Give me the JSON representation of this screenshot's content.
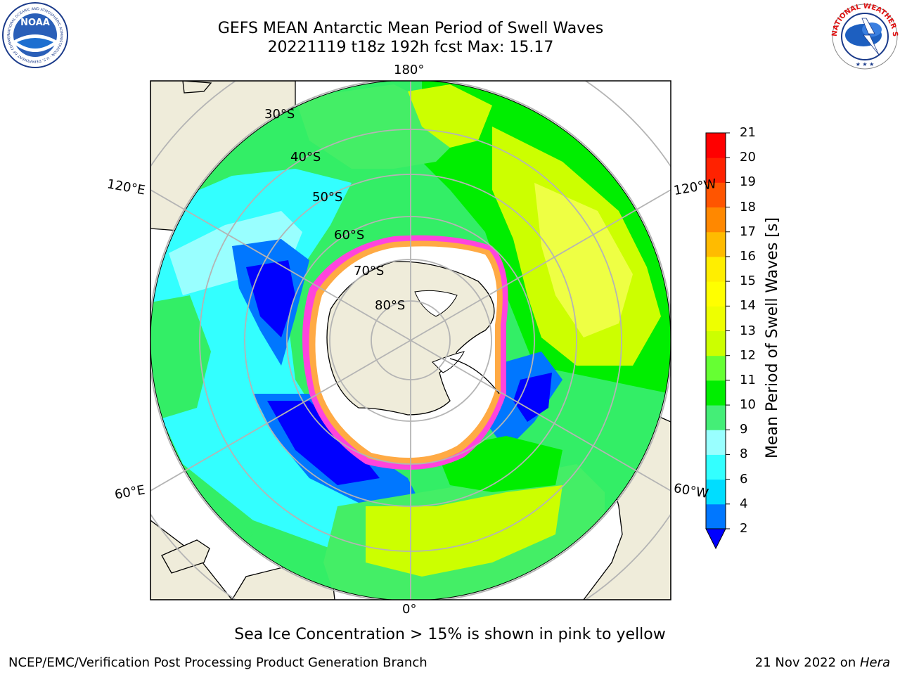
{
  "title": {
    "line1": "GEFS MEAN Antarctic Mean Period of Swell Waves",
    "line2": "20221119 t18z 192h fcst   Max: 15.17"
  },
  "map": {
    "projection": "south-polar-stereographic",
    "lat_labels": [
      "30°S",
      "40°S",
      "50°S",
      "60°S",
      "70°S",
      "80°S"
    ],
    "lon_labels": {
      "top": "180°",
      "bottom": "0°",
      "left_upper": "120°E",
      "left_lower": "60°E",
      "right_upper": "120°W",
      "right_lower": "60°W"
    },
    "colors": {
      "land": "#efecda",
      "ocean_deep_blue": "#0000ff",
      "blue": "#0077ff",
      "cyan": "#00ffff",
      "light_cyan": "#88ffff",
      "green": "#33ee55",
      "bright_green": "#00ee00",
      "yellow_green": "#ccff00",
      "sea_ice_pink": "#ff44dd",
      "sea_ice_orange": "#ffaa44",
      "grid": "#b4b4b4"
    }
  },
  "colorbar": {
    "label": "Mean Period of Swell Waves [s]",
    "ticks": [
      "2",
      "4",
      "6",
      "8",
      "9",
      "10",
      "11",
      "12",
      "13",
      "14",
      "15",
      "16",
      "17",
      "18",
      "19",
      "20",
      "21"
    ],
    "colors": [
      "#0000ff",
      "#0077ff",
      "#00ddff",
      "#33ffff",
      "#99ffff",
      "#44ee77",
      "#00ee00",
      "#66ff33",
      "#ccff00",
      "#eeff00",
      "#ffff00",
      "#ffee00",
      "#ffbb00",
      "#ff8800",
      "#ff5500",
      "#ff2200",
      "#ff0000"
    ],
    "extend": "min"
  },
  "logos": {
    "left": {
      "text": "NOAA",
      "ring": "NATIONAL OCEANIC AND ATMOSPHERIC ADMINISTRATION · U.S. DEPARTMENT OF COMMERCE"
    },
    "right": {
      "ring": "NATIONAL WEATHER SERVICE"
    }
  },
  "note": "Sea Ice Concentration > 15% is shown in pink to yellow",
  "footer": {
    "left": "NCEP/EMC/Verification Post Processing Product Generation Branch",
    "right_prefix": "21 Nov 2022 on ",
    "right_host": "Hera"
  }
}
